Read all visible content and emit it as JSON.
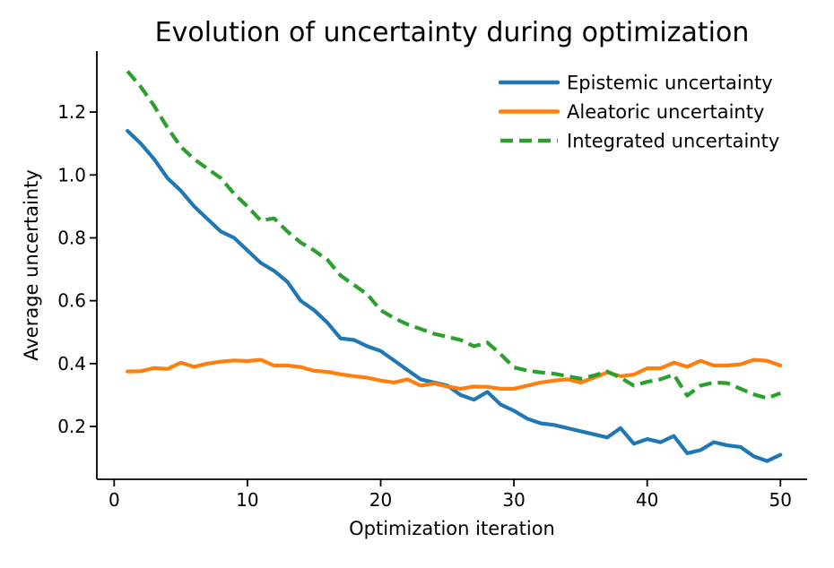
{
  "chart_data": {
    "type": "line",
    "title": "Evolution of uncertainty during optimization",
    "xlabel": "Optimization iteration",
    "ylabel": "Average uncertainty",
    "grid": false,
    "legend_position": "upper right",
    "background_color": "#ffffff",
    "axis_color": "#000000",
    "xlim": [
      -1.3,
      52.0
    ],
    "ylim": [
      0.032,
      1.394
    ],
    "xticks": [
      0,
      10,
      20,
      30,
      40,
      50
    ],
    "yticks": [
      0.2,
      0.4,
      0.6,
      0.8,
      1.0,
      1.2
    ],
    "xtick_labels": [
      "0",
      "10",
      "20",
      "30",
      "40",
      "50"
    ],
    "ytick_labels": [
      "0.2",
      "0.4",
      "0.6",
      "0.8",
      "1.0",
      "1.2"
    ],
    "x": [
      1,
      2,
      3,
      4,
      5,
      6,
      7,
      8,
      9,
      10,
      11,
      12,
      13,
      14,
      15,
      16,
      17,
      18,
      19,
      20,
      21,
      22,
      23,
      24,
      25,
      26,
      27,
      28,
      29,
      30,
      31,
      32,
      33,
      34,
      35,
      36,
      37,
      38,
      39,
      40,
      41,
      42,
      43,
      44,
      45,
      46,
      47,
      48,
      49,
      50
    ],
    "series": [
      {
        "name": "Epistemic uncertainty",
        "color": "#1f77b4",
        "style": "solid",
        "values": [
          1.14,
          1.1,
          1.05,
          0.99,
          0.95,
          0.9,
          0.86,
          0.82,
          0.8,
          0.76,
          0.72,
          0.695,
          0.66,
          0.6,
          0.57,
          0.53,
          0.48,
          0.475,
          0.455,
          0.44,
          0.41,
          0.38,
          0.35,
          0.34,
          0.33,
          0.3,
          0.285,
          0.31,
          0.27,
          0.25,
          0.225,
          0.21,
          0.205,
          0.195,
          0.185,
          0.175,
          0.165,
          0.195,
          0.145,
          0.16,
          0.15,
          0.17,
          0.115,
          0.125,
          0.15,
          0.14,
          0.135,
          0.105,
          0.09,
          0.11
        ]
      },
      {
        "name": "Aleatoric uncertainty",
        "color": "#ff7f0e",
        "style": "solid",
        "values": [
          0.375,
          0.376,
          0.386,
          0.383,
          0.403,
          0.39,
          0.4,
          0.406,
          0.41,
          0.408,
          0.412,
          0.394,
          0.394,
          0.389,
          0.377,
          0.374,
          0.366,
          0.36,
          0.355,
          0.346,
          0.34,
          0.35,
          0.33,
          0.337,
          0.327,
          0.32,
          0.327,
          0.326,
          0.32,
          0.32,
          0.33,
          0.34,
          0.346,
          0.35,
          0.34,
          0.355,
          0.372,
          0.36,
          0.365,
          0.385,
          0.385,
          0.403,
          0.39,
          0.409,
          0.394,
          0.394,
          0.398,
          0.412,
          0.409,
          0.394
        ]
      },
      {
        "name": "Integrated uncertainty",
        "color": "#2ca02c",
        "style": "dashed",
        "values": [
          1.33,
          1.28,
          1.22,
          1.15,
          1.09,
          1.05,
          1.02,
          0.99,
          0.94,
          0.9,
          0.855,
          0.862,
          0.82,
          0.785,
          0.76,
          0.73,
          0.68,
          0.65,
          0.62,
          0.57,
          0.545,
          0.525,
          0.51,
          0.495,
          0.485,
          0.475,
          0.455,
          0.467,
          0.43,
          0.388,
          0.378,
          0.372,
          0.368,
          0.36,
          0.352,
          0.362,
          0.375,
          0.355,
          0.33,
          0.342,
          0.35,
          0.365,
          0.298,
          0.33,
          0.34,
          0.338,
          0.32,
          0.302,
          0.29,
          0.306
        ]
      }
    ]
  }
}
